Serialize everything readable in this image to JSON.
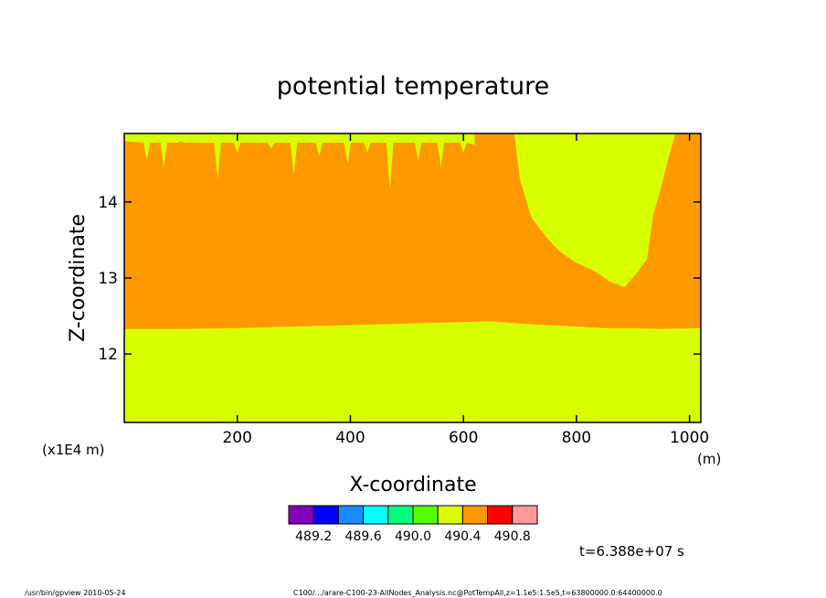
{
  "chart_data": {
    "type": "heatmap",
    "title": "potential temperature",
    "xlabel": "X-coordinate",
    "ylabel": "Z-coordinate",
    "x_unit": "(m)",
    "y_scale_note": "(x1E4 m)",
    "xlim": [
      0,
      1020
    ],
    "ylim": [
      11.1,
      14.9
    ],
    "x_ticks": [
      200,
      400,
      600,
      800,
      1000
    ],
    "x_tick_labels": [
      "200",
      "400",
      "600",
      "800",
      "1000"
    ],
    "y_ticks": [
      12,
      13,
      14
    ],
    "y_tick_labels": [
      "12",
      "13",
      "14"
    ],
    "color_levels": {
      "colors": [
        "#8400b8",
        "#0000ff",
        "#1a8cff",
        "#00ffff",
        "#00ff7f",
        "#54ff00",
        "#d8ff00",
        "#ff9900",
        "#ff0000",
        "#ff9a9a"
      ],
      "boundary_labels": [
        "489.2",
        "489.6",
        "490.0",
        "490.4",
        "490.8"
      ]
    },
    "regions": [
      {
        "level": "490.2-490.4",
        "color": "#d8ff00",
        "description": "lower layer, z below ~12.35"
      },
      {
        "level": "490.4-490.6",
        "color": "#ff9900",
        "description": "upper layer, z ~12.35 to top"
      },
      {
        "level": "490.2-490.4",
        "color": "#d8ff00",
        "description": "upper intrusions near top and x ~700-900"
      }
    ],
    "boundary_lower_z": [
      [
        0,
        12.33
      ],
      [
        100,
        12.33
      ],
      [
        200,
        12.34
      ],
      [
        300,
        12.36
      ],
      [
        400,
        12.38
      ],
      [
        500,
        12.4
      ],
      [
        600,
        12.42
      ],
      [
        650,
        12.43
      ],
      [
        700,
        12.4
      ],
      [
        750,
        12.38
      ],
      [
        800,
        12.36
      ],
      [
        850,
        12.34
      ],
      [
        900,
        12.34
      ],
      [
        950,
        12.33
      ],
      [
        1020,
        12.34
      ]
    ],
    "time_label": "t=6.388e+07 s"
  },
  "footer": {
    "left": "/usr/bin/gpview   2010-05-24",
    "right": "C100/.../arare-C100-23-AllNodes_Analysis.nc@PotTempAll,z=1.1e5:1.5e5,t=63800000.0:64400000.0"
  }
}
